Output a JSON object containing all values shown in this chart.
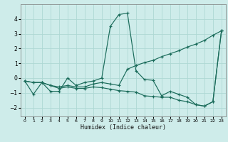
{
  "xlabel": "Humidex (Indice chaleur)",
  "bg_color": "#ceecea",
  "grid_color": "#aed8d4",
  "line_color": "#1a6b5a",
  "x_ticks": [
    0,
    1,
    2,
    3,
    4,
    5,
    6,
    7,
    8,
    9,
    10,
    11,
    12,
    13,
    14,
    15,
    16,
    17,
    18,
    19,
    20,
    21,
    22,
    23
  ],
  "ylim": [
    -2.6,
    5.0
  ],
  "yticks": [
    -2,
    -1,
    0,
    1,
    2,
    3,
    4
  ],
  "series1": [
    [
      0,
      -0.2
    ],
    [
      1,
      -1.1
    ],
    [
      2,
      -0.3
    ],
    [
      3,
      -0.9
    ],
    [
      4,
      -0.9
    ],
    [
      5,
      0.0
    ],
    [
      6,
      -0.5
    ],
    [
      7,
      -0.3
    ],
    [
      8,
      -0.2
    ],
    [
      9,
      0.0
    ],
    [
      10,
      3.5
    ],
    [
      11,
      4.3
    ],
    [
      12,
      4.4
    ],
    [
      13,
      0.5
    ],
    [
      14,
      -0.1
    ],
    [
      15,
      -0.15
    ],
    [
      16,
      -1.2
    ],
    [
      17,
      -0.9
    ],
    [
      18,
      -1.1
    ],
    [
      19,
      -1.3
    ],
    [
      20,
      -1.8
    ],
    [
      21,
      -1.9
    ],
    [
      22,
      -1.6
    ],
    [
      23,
      3.2
    ]
  ],
  "series2": [
    [
      0,
      -0.2
    ],
    [
      1,
      -0.3
    ],
    [
      2,
      -0.3
    ],
    [
      3,
      -0.5
    ],
    [
      4,
      -0.6
    ],
    [
      5,
      -0.5
    ],
    [
      6,
      -0.6
    ],
    [
      7,
      -0.6
    ],
    [
      8,
      -0.4
    ],
    [
      9,
      -0.3
    ],
    [
      10,
      -0.4
    ],
    [
      11,
      -0.5
    ],
    [
      12,
      0.6
    ],
    [
      13,
      0.85
    ],
    [
      14,
      1.05
    ],
    [
      15,
      1.2
    ],
    [
      16,
      1.45
    ],
    [
      17,
      1.65
    ],
    [
      18,
      1.85
    ],
    [
      19,
      2.1
    ],
    [
      20,
      2.3
    ],
    [
      21,
      2.55
    ],
    [
      22,
      2.9
    ],
    [
      23,
      3.2
    ]
  ],
  "series3": [
    [
      0,
      -0.2
    ],
    [
      1,
      -0.3
    ],
    [
      2,
      -0.3
    ],
    [
      3,
      -0.5
    ],
    [
      4,
      -0.7
    ],
    [
      5,
      -0.6
    ],
    [
      6,
      -0.7
    ],
    [
      7,
      -0.7
    ],
    [
      8,
      -0.6
    ],
    [
      9,
      -0.65
    ],
    [
      10,
      -0.75
    ],
    [
      11,
      -0.85
    ],
    [
      12,
      -0.9
    ],
    [
      13,
      -0.95
    ],
    [
      14,
      -1.2
    ],
    [
      15,
      -1.25
    ],
    [
      16,
      -1.3
    ],
    [
      17,
      -1.3
    ],
    [
      18,
      -1.5
    ],
    [
      19,
      -1.6
    ],
    [
      20,
      -1.8
    ],
    [
      21,
      -1.9
    ],
    [
      22,
      -1.6
    ],
    [
      23,
      3.2
    ]
  ]
}
